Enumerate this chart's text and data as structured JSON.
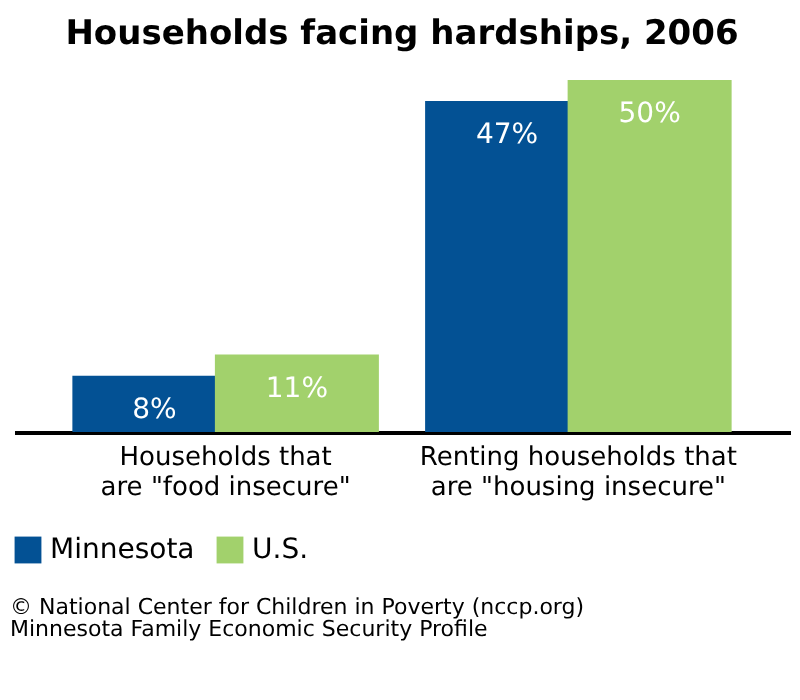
{
  "chart_data": {
    "type": "bar",
    "title": "Households facing hardships, 2006",
    "categories": [
      "Households that are \"food insecure\"",
      "Renting households that are \"housing insecure\""
    ],
    "series": [
      {
        "name": "Minnesota",
        "color": "#035194",
        "values": [
          8,
          47
        ],
        "value_labels": [
          "8%",
          "47%"
        ]
      },
      {
        "name": "U.S.",
        "color": "#a2d16c",
        "values": [
          11,
          50
        ],
        "value_labels": [
          "11%",
          "50%"
        ]
      }
    ],
    "legend": "bottom",
    "annotations": [
      "© National Center for Children in Poverty (nccp.org)",
      "Minnesota Family Economic Security Profile"
    ]
  }
}
